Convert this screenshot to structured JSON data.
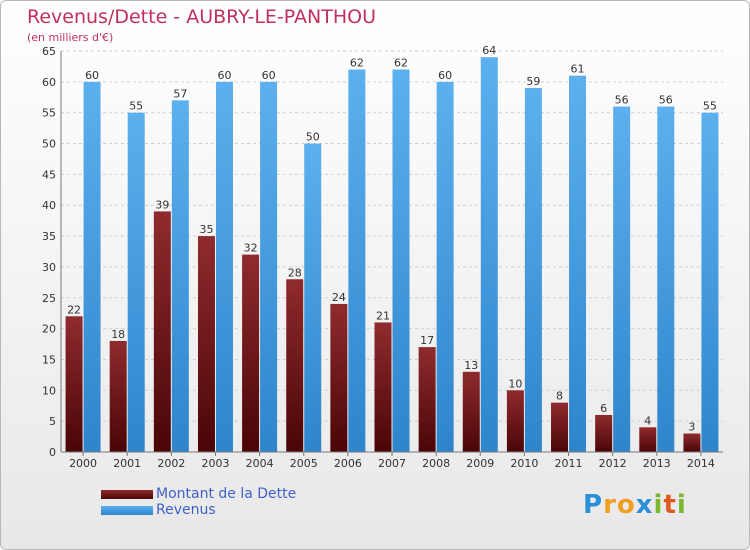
{
  "title": "Revenus/Dette - AUBRY-LE-PANTHOU",
  "subtitle": "(en milliers d'€)",
  "logo_text": "Proxiti",
  "colors": {
    "debt": "#6e1214",
    "revenue": "#3d9be0",
    "title": "#c0305a",
    "legend_text": "#4060c8"
  },
  "chart_data": {
    "type": "bar",
    "categories": [
      "2000",
      "2001",
      "2002",
      "2003",
      "2004",
      "2005",
      "2006",
      "2007",
      "2008",
      "2009",
      "2010",
      "2011",
      "2012",
      "2013",
      "2014"
    ],
    "series": [
      {
        "name": "Montant de la Dette",
        "values": [
          22,
          18,
          39,
          35,
          32,
          28,
          24,
          21,
          17,
          13,
          10,
          8,
          6,
          4,
          3
        ]
      },
      {
        "name": "Revenus",
        "values": [
          60,
          55,
          57,
          60,
          60,
          50,
          62,
          62,
          60,
          64,
          59,
          61,
          56,
          56,
          55
        ]
      }
    ],
    "ylim": [
      0,
      65
    ],
    "yticks": [
      0,
      5,
      10,
      15,
      20,
      25,
      30,
      35,
      40,
      45,
      50,
      55,
      60,
      65
    ],
    "grid": true,
    "legend_position": "bottom-left"
  }
}
